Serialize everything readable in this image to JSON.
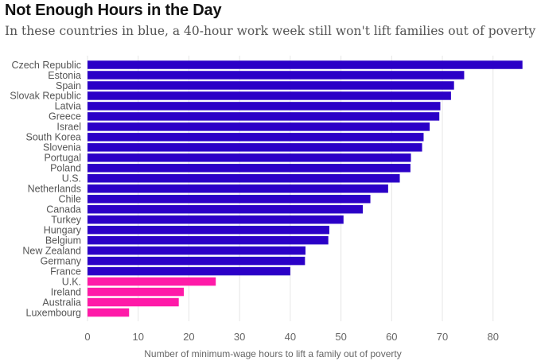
{
  "header": {
    "title": "Not Enough Hours in the Day",
    "subtitle": "In these countries in blue, a 40-hour work week still won't lift families out of poverty"
  },
  "colors": {
    "above_40": "#2b00c7",
    "below_40": "#ff1aa8",
    "gridline": "#e6e6e6",
    "text": "#555555"
  },
  "chart_data": {
    "type": "bar",
    "orientation": "horizontal",
    "title": "Not Enough Hours in the Day",
    "subtitle": "In these countries in blue, a 40-hour work week still won't lift families out of poverty",
    "xlabel": "Number of minimum-wage hours to lift a family out of poverty",
    "ylabel": "",
    "xlim": [
      0,
      86
    ],
    "xticks": [
      0,
      10,
      20,
      30,
      40,
      50,
      60,
      70,
      80
    ],
    "grid": true,
    "categories": [
      "Czech Republic",
      "Estonia",
      "Spain",
      "Slovak Republic",
      "Latvia",
      "Greece",
      "Israel",
      "South Korea",
      "Slovenia",
      "Portugal",
      "Poland",
      "U.S.",
      "Netherlands",
      "Chile",
      "Canada",
      "Turkey",
      "Hungary",
      "Belgium",
      "New Zealand",
      "Germany",
      "France",
      "U.K.",
      "Ireland",
      "Australia",
      "Luxembourg"
    ],
    "values": [
      85.8,
      74.3,
      72.3,
      71.7,
      69.6,
      69.4,
      67.5,
      66.3,
      66.0,
      63.8,
      63.7,
      61.6,
      59.3,
      55.8,
      54.3,
      50.5,
      47.7,
      47.5,
      43.0,
      42.9,
      40.0,
      25.3,
      19.0,
      18.0,
      8.2
    ],
    "highlight_threshold": 40
  }
}
